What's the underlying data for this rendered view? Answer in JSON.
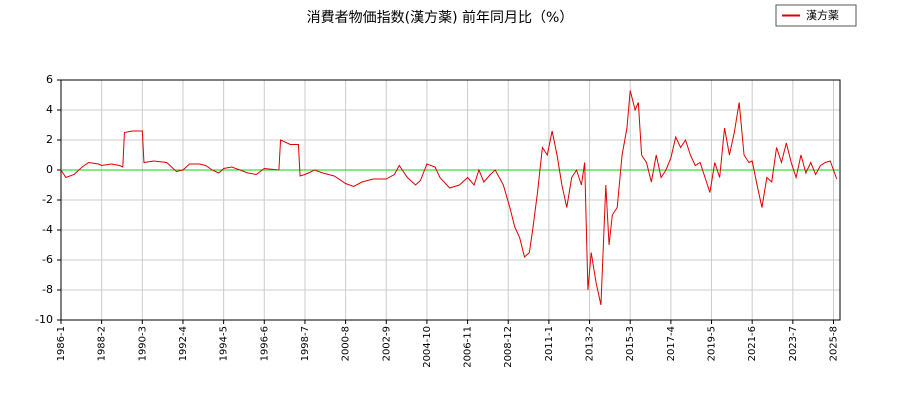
{
  "chart_data": {
    "type": "line",
    "title": "消費者物価指数(漢方薬) 前年同月比（%）",
    "x": [
      "1986-1",
      "1986-4",
      "1986-9",
      "1987-2",
      "1987-6",
      "1987-12",
      "1988-2",
      "1988-8",
      "1989-1",
      "1989-3",
      "1989-4",
      "1989-9",
      "1990-3",
      "1990-4",
      "1990-10",
      "1991-6",
      "1991-12",
      "1992-4",
      "1992-8",
      "1993-2",
      "1993-6",
      "1993-10",
      "1994-2",
      "1994-5",
      "1994-10",
      "1995-3",
      "1995-8",
      "1996-1",
      "1996-6",
      "1997-3",
      "1997-4",
      "1997-10",
      "1998-3",
      "1998-4",
      "1998-7",
      "1999-1",
      "1999-6",
      "2000-1",
      "2000-8",
      "2001-1",
      "2001-6",
      "2002-1",
      "2002-9",
      "2003-2",
      "2003-5",
      "2003-10",
      "2004-3",
      "2004-6",
      "2004-10",
      "2005-3",
      "2005-6",
      "2005-12",
      "2006-6",
      "2006-11",
      "2007-3",
      "2007-6",
      "2007-9",
      "2008-1",
      "2008-4",
      "2008-9",
      "2009-1",
      "2009-4",
      "2009-7",
      "2009-10",
      "2010-1",
      "2010-3",
      "2010-6",
      "2010-9",
      "2010-12",
      "2011-3",
      "2011-6",
      "2011-9",
      "2011-12",
      "2012-3",
      "2012-6",
      "2012-9",
      "2012-11",
      "2013-1",
      "2013-3",
      "2013-6",
      "2013-9",
      "2013-12",
      "2014-2",
      "2014-4",
      "2014-7",
      "2014-10",
      "2015-1",
      "2015-3",
      "2015-6",
      "2015-8",
      "2015-10",
      "2016-1",
      "2016-4",
      "2016-7",
      "2016-10",
      "2017-1",
      "2017-4",
      "2017-7",
      "2017-10",
      "2018-1",
      "2018-4",
      "2018-7",
      "2018-10",
      "2019-1",
      "2019-4",
      "2019-7",
      "2019-10",
      "2020-1",
      "2020-4",
      "2020-7",
      "2020-10",
      "2021-1",
      "2021-4",
      "2021-6",
      "2021-9",
      "2021-12",
      "2022-3",
      "2022-6",
      "2022-9",
      "2022-12",
      "2023-3",
      "2023-6",
      "2023-9",
      "2023-12",
      "2024-3",
      "2024-6",
      "2024-9",
      "2024-12",
      "2025-3",
      "2025-6",
      "2025-8",
      "2025-10"
    ],
    "series": [
      {
        "name": "漢方薬",
        "color": "#e00000",
        "values": [
          0,
          -0.5,
          -0.3,
          0.2,
          0.5,
          0.4,
          0.3,
          0.4,
          0.3,
          0.2,
          2.5,
          2.6,
          2.6,
          0.5,
          0.6,
          0.5,
          -0.1,
          0,
          0.4,
          0.4,
          0.3,
          0,
          -0.2,
          0.1,
          0.2,
          0,
          -0.2,
          -0.3,
          0.1,
          0,
          2.0,
          1.7,
          1.7,
          -0.4,
          -0.3,
          0,
          -0.2,
          -0.4,
          -0.9,
          -1.1,
          -0.8,
          -0.6,
          -0.6,
          -0.3,
          0.3,
          -0.5,
          -1.0,
          -0.7,
          0.4,
          0.2,
          -0.5,
          -1.2,
          -1.0,
          -0.5,
          -1.0,
          0,
          -0.8,
          -0.3,
          0,
          -1.0,
          -2.5,
          -3.8,
          -4.5,
          -5.8,
          -5.5,
          -4,
          -1.5,
          1.5,
          1.0,
          2.6,
          1.0,
          -1.0,
          -2.5,
          -0.5,
          0,
          -1.0,
          0.5,
          -8.0,
          -5.5,
          -7.5,
          -9.0,
          -1.0,
          -5.0,
          -3.0,
          -2.5,
          1.0,
          2.8,
          5.3,
          4.0,
          4.5,
          1.0,
          0.5,
          -0.8,
          1.0,
          -0.5,
          0,
          0.8,
          2.2,
          1.5,
          2.0,
          1.0,
          0.3,
          0.5,
          -0.5,
          -1.5,
          0.5,
          -0.5,
          2.8,
          1.0,
          2.5,
          4.5,
          1.0,
          0.5,
          0.6,
          -1.0,
          -2.5,
          -0.5,
          -0.8,
          1.5,
          0.5,
          1.8,
          0.5,
          -0.5,
          1.0,
          -0.2,
          0.5,
          -0.3,
          0.3,
          0.5,
          0.6,
          0,
          -0.6
        ]
      }
    ],
    "xlim": [
      "1986-1",
      "2025-12"
    ],
    "xticks": [
      "1986-1",
      "1988-2",
      "1990-3",
      "1992-4",
      "1994-5",
      "1996-6",
      "1998-7",
      "2000-8",
      "2002-9",
      "2004-10",
      "2006-11",
      "2008-12",
      "2011-1",
      "2013-2",
      "2015-3",
      "2017-4",
      "2019-5",
      "2021-6",
      "2023-7",
      "2025-8"
    ],
    "ylim": [
      -10,
      6
    ],
    "yticks": [
      -10,
      -8,
      -6,
      -4,
      -2,
      0,
      2,
      4,
      6
    ],
    "grid": true,
    "zero_line_color": "#00dd00",
    "legend": "upper right"
  }
}
